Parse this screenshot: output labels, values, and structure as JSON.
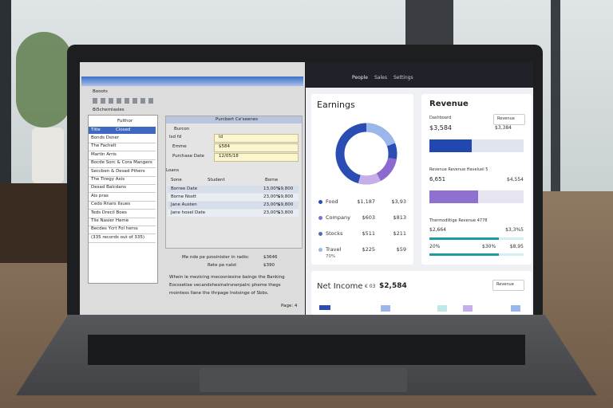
{
  "left_app": {
    "menu": "Booots",
    "toolbar_label": "Bi5chemlasles",
    "list": {
      "header": "Fulthor",
      "columns": [
        "Title",
        "Closed"
      ],
      "items": [
        "Bonds Dsner",
        "The Fachelt",
        "Martin Arris",
        "Bocde Sorc & Cora Mangers",
        "Seccben & Desad Pthers",
        "The Tiregy Axis",
        "Desad Balcdans",
        "Ais pras",
        "Cedo Rnars Ilsues",
        "Teds Drecil Boes",
        "Tlie Nasier Heme",
        "Becdes Ycrt Fol herss",
        "(335 records out of 335)"
      ]
    },
    "form": {
      "title": "Purcbert Ce'seenes",
      "section": "Burcon",
      "fields": [
        {
          "label": "Isd fd",
          "value": "Id"
        },
        {
          "label": "Emme",
          "value": "$584"
        },
        {
          "label": "Purchase Date",
          "value": "12/05/18"
        }
      ],
      "loans_label": "Loans",
      "table": {
        "headers": [
          "Sone",
          "Student",
          "Borne"
        ],
        "rows": [
          [
            "Borree Date",
            "13,00%",
            "$9,800"
          ],
          [
            "Borne Nsstt",
            "23,00%",
            "$9,800"
          ],
          [
            "Jane Austen",
            "23,00%",
            "$9,800"
          ],
          [
            "Jane hosel Date",
            "23,00%",
            "$3,800"
          ]
        ]
      }
    },
    "notes": [
      {
        "text": "Me nde pe pzssinister in radio:",
        "value": "$3646"
      },
      {
        "text": "Rete pe nalst",
        "value": "$390"
      }
    ],
    "paragraph": [
      "Whein le mezicing mecosniesine baings the Banking",
      "Eocssetise vecandshesinatrsnerpalrc pheme thegs",
      "mointess llane the thrpage lnstsinge of Sbbs."
    ],
    "page": "Page: 4"
  },
  "dashboard": {
    "nav": [
      "People",
      "Sales",
      "Settings"
    ],
    "earnings": {
      "title": "Earnings",
      "rows": [
        [
          "Food",
          "$1,187",
          "$3,93"
        ],
        [
          "Company",
          "$603",
          "$813"
        ],
        [
          "Stocks",
          "$511",
          "$211"
        ],
        [
          "Travel",
          "$225",
          "$59"
        ]
      ],
      "note": "70%"
    },
    "revenue": {
      "title": "Revenue",
      "subtitle": "Dashboard",
      "dropdown": "Revenue",
      "v1": "$3,584",
      "v2": "$3,384",
      "label2": "Revenue Revenue Haveluel 5",
      "v3": "6,651",
      "v4": "$4,554",
      "label3": "Thermodlitige Revenue 4778",
      "v5": "$2,664",
      "v6": "$3,3%5",
      "v7": "20%",
      "v8": "$30%",
      "v9": "$8,95"
    },
    "net_income": {
      "title": "Net Income",
      "prefix": "€ 03",
      "value": "$2,584",
      "dropdown": "Revenue"
    }
  }
}
